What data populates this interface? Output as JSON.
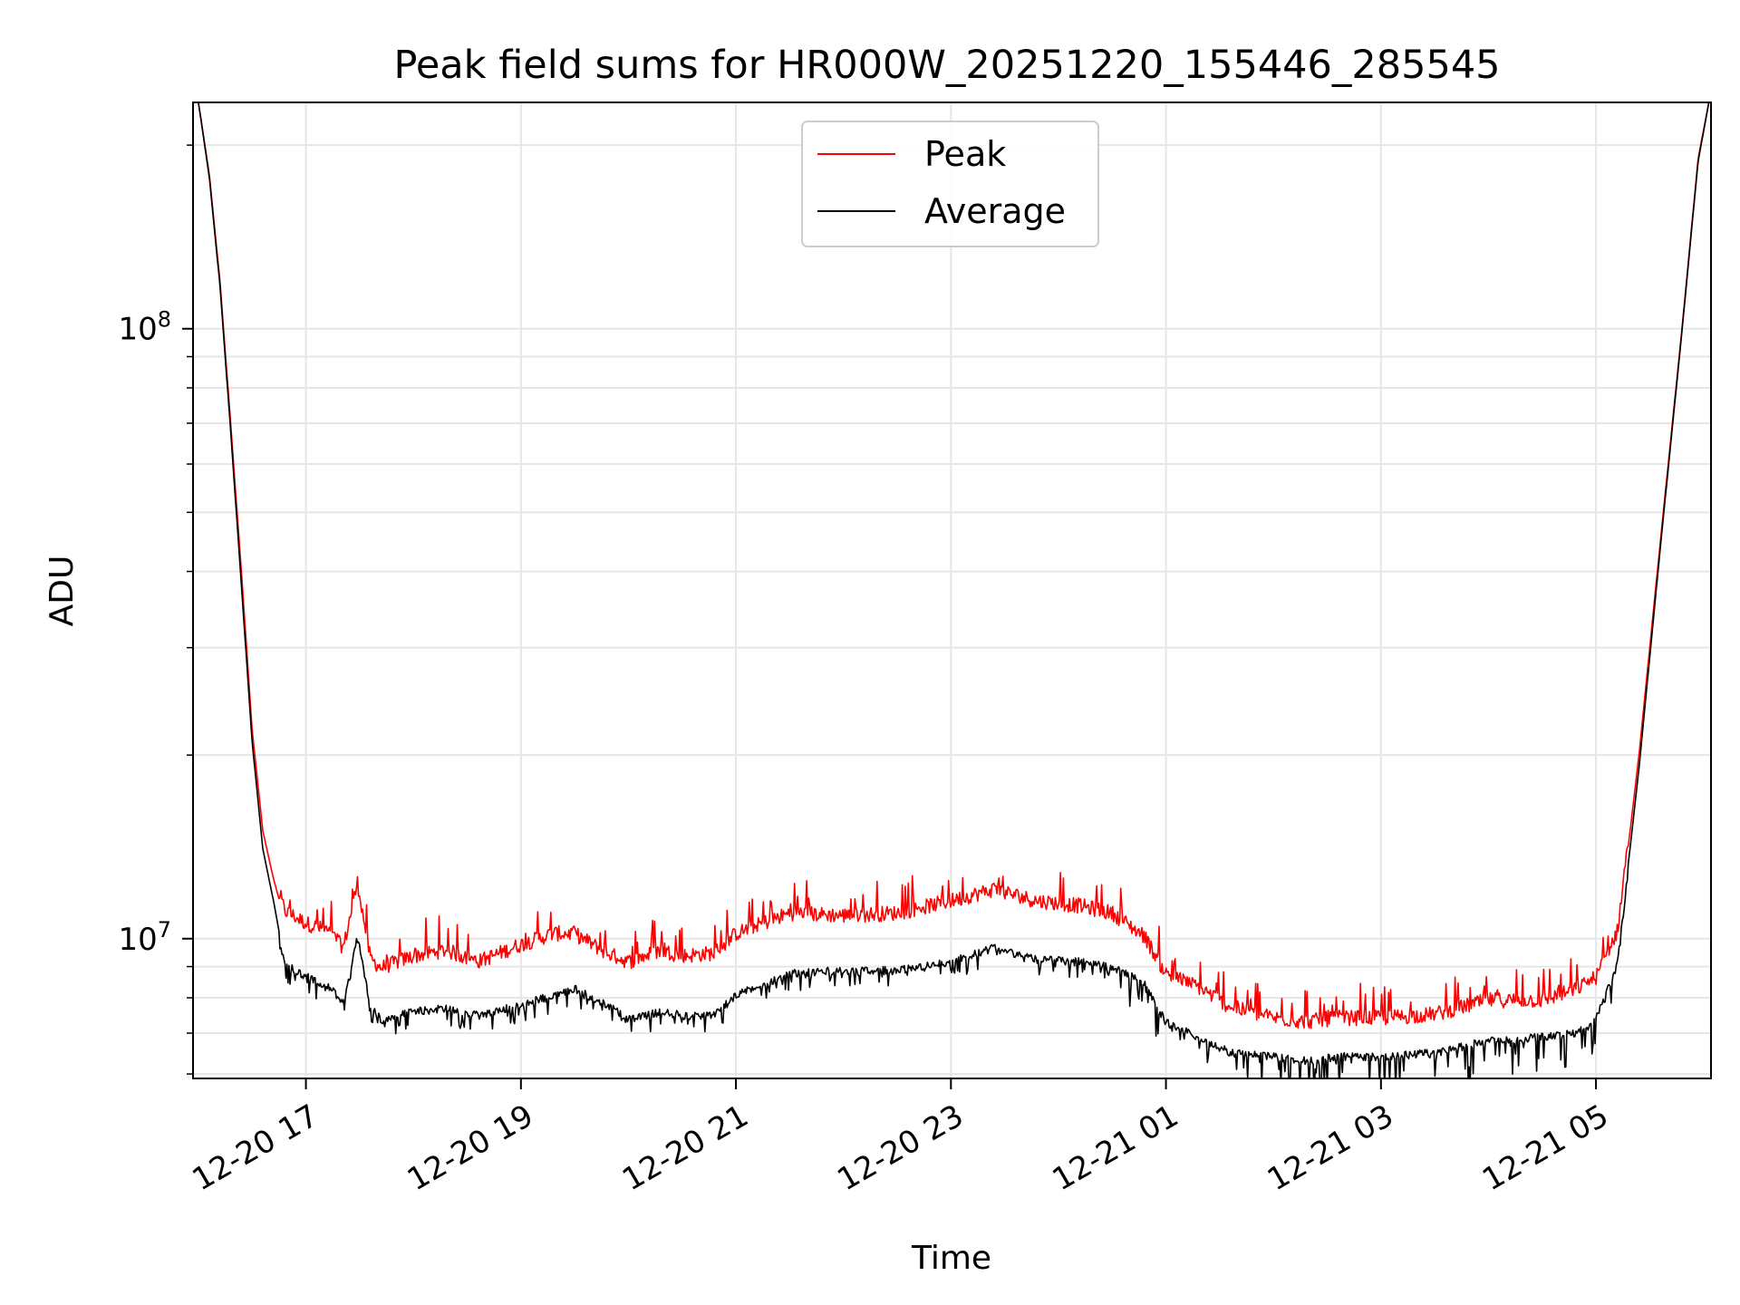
{
  "chart_data": {
    "type": "line",
    "title": "Peak field sums for HR000W_20251220_155446_285545",
    "xlabel": "Time",
    "ylabel": "ADU",
    "yscale": "log",
    "ylim": [
      5900000,
      235000000
    ],
    "xlim_hours": [
      15.95,
      30.07
    ],
    "x_ticks": [
      {
        "label": "12-20 17",
        "hour": 17
      },
      {
        "label": "12-20 19",
        "hour": 19
      },
      {
        "label": "12-20 21",
        "hour": 21
      },
      {
        "label": "12-20 23",
        "hour": 23
      },
      {
        "label": "12-21 01",
        "hour": 25
      },
      {
        "label": "12-21 03",
        "hour": 27
      },
      {
        "label": "12-21 05",
        "hour": 29
      }
    ],
    "y_major_ticks": [
      {
        "base": "10",
        "exp": "7",
        "value": 10000000
      },
      {
        "base": "10",
        "exp": "8",
        "value": 100000000
      }
    ],
    "y_minor_ticks": [
      6000000,
      7000000,
      8000000,
      9000000,
      20000000,
      30000000,
      40000000,
      50000000,
      60000000,
      70000000,
      80000000,
      90000000,
      200000000
    ],
    "grid": true,
    "legend": {
      "position": "top-center"
    },
    "series": [
      {
        "name": "Peak",
        "color": "#ff0000",
        "x_hours": [
          16.0,
          16.1,
          16.2,
          16.3,
          16.4,
          16.5,
          16.6,
          16.7,
          16.8,
          17.0,
          17.2,
          17.35,
          17.48,
          17.6,
          17.7,
          18.0,
          18.3,
          18.6,
          19.0,
          19.3,
          19.5,
          19.8,
          20.0,
          20.3,
          20.5,
          20.8,
          21.0,
          21.5,
          22.0,
          22.5,
          23.0,
          23.4,
          23.8,
          24.2,
          24.5,
          24.8,
          25.0,
          25.3,
          25.6,
          26.0,
          26.3,
          26.6,
          27.0,
          27.5,
          28.0,
          28.5,
          28.8,
          29.0,
          29.2,
          29.4,
          29.6,
          29.8,
          29.95,
          30.05
        ],
        "values": [
          235000000,
          180000000,
          120000000,
          70000000,
          40000000,
          22000000,
          15000000,
          12500000,
          10800000,
          10300000,
          10000000,
          9400000,
          12000000,
          9000000,
          8700000,
          9100000,
          9300000,
          8900000,
          9500000,
          9900000,
          9900000,
          9200000,
          8900000,
          9300000,
          9100000,
          9200000,
          9900000,
          10700000,
          10600000,
          10700000,
          11200000,
          11700000,
          11200000,
          11000000,
          10700000,
          9800000,
          8500000,
          8100000,
          7500000,
          7200000,
          7100000,
          7200000,
          7200000,
          7300000,
          7700000,
          7700000,
          8000000,
          8400000,
          10000000,
          20000000,
          45000000,
          100000000,
          190000000,
          235000000
        ]
      },
      {
        "name": "Average",
        "color": "#000000",
        "x_hours": [
          16.0,
          16.1,
          16.2,
          16.3,
          16.4,
          16.5,
          16.6,
          16.7,
          16.8,
          17.0,
          17.2,
          17.35,
          17.48,
          17.6,
          17.7,
          18.0,
          18.3,
          18.6,
          19.0,
          19.3,
          19.5,
          19.8,
          20.0,
          20.3,
          20.5,
          20.8,
          21.0,
          21.5,
          22.0,
          22.5,
          23.0,
          23.4,
          23.8,
          24.2,
          24.5,
          24.8,
          25.0,
          25.3,
          25.6,
          26.0,
          26.3,
          26.6,
          27.0,
          27.5,
          28.0,
          28.5,
          28.8,
          29.0,
          29.2,
          29.4,
          29.6,
          29.8,
          29.95,
          30.05
        ],
        "values": [
          235000000,
          178000000,
          118000000,
          68000000,
          38000000,
          21000000,
          14000000,
          11500000,
          9200000,
          8800000,
          8500000,
          8000000,
          10200000,
          7800000,
          7500000,
          7700000,
          7800000,
          7600000,
          7900000,
          8200000,
          8400000,
          7900000,
          7500000,
          7700000,
          7600000,
          7600000,
          8200000,
          8900000,
          9000000,
          9000000,
          9300000,
          9800000,
          9400000,
          9300000,
          9100000,
          8600000,
          7400000,
          7000000,
          6600000,
          6500000,
          6400000,
          6500000,
          6500000,
          6600000,
          6900000,
          7000000,
          7100000,
          7500000,
          9200000,
          19000000,
          44000000,
          99000000,
          188000000,
          235000000
        ]
      }
    ]
  }
}
